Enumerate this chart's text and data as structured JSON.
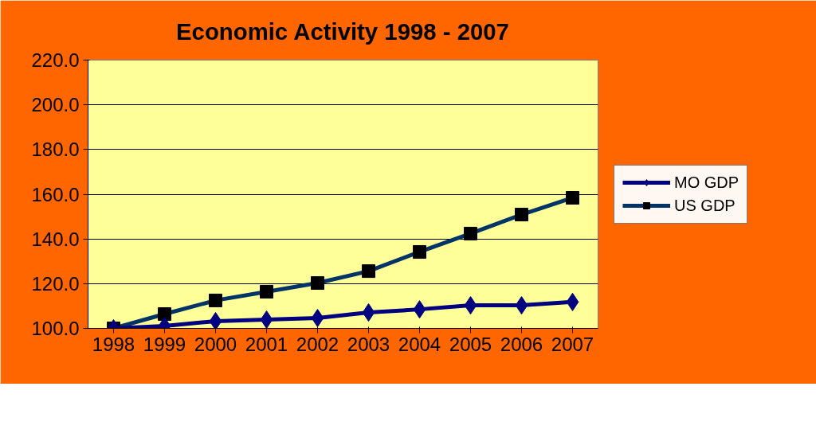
{
  "chart_data": {
    "type": "line",
    "title": "Economic Activity 1998 - 2007",
    "categories": [
      "1998",
      "1999",
      "2000",
      "2001",
      "2002",
      "2003",
      "2004",
      "2005",
      "2006",
      "2007"
    ],
    "series": [
      {
        "name": "MO GDP",
        "color": "#000080",
        "marker": "diamond",
        "values": [
          100.0,
          101.1,
          103.2,
          103.9,
          104.6,
          107.1,
          108.5,
          110.3,
          110.3,
          111.8
        ]
      },
      {
        "name": "US GDP",
        "color": "#003366",
        "marker": "square",
        "values": [
          100.0,
          106.4,
          112.5,
          116.4,
          120.3,
          125.6,
          134.2,
          142.4,
          150.9,
          158.4
        ]
      }
    ],
    "ylim": [
      100,
      220
    ],
    "yticks": [
      {
        "value": 100,
        "label": "100.0"
      },
      {
        "value": 120,
        "label": "120.0"
      },
      {
        "value": 140,
        "label": "140.0"
      },
      {
        "value": 160,
        "label": "160.0"
      },
      {
        "value": 180,
        "label": "180.0"
      },
      {
        "value": 200,
        "label": "200.0"
      },
      {
        "value": 220,
        "label": "220.0"
      }
    ],
    "grid": "y",
    "legend": "right",
    "line_style": "solid"
  }
}
